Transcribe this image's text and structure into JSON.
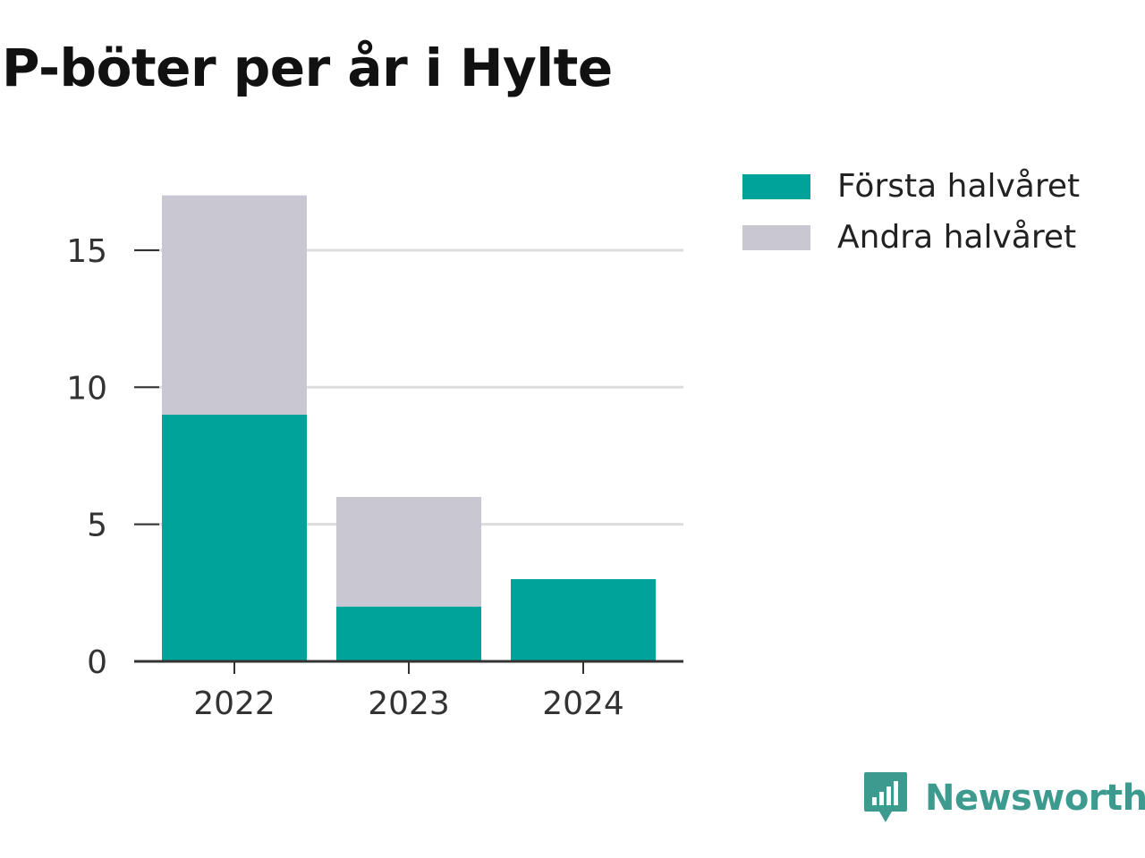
{
  "title": "P-böter per år i Hylte",
  "brand": {
    "name": "Newsworthy",
    "icon": "newsworthy-logo-icon"
  },
  "colors": {
    "first_half": "#00a39a",
    "second_half": "#c8c7d2",
    "grid": "#dddddd",
    "axis": "#333333",
    "brand": "#3c9a8e"
  },
  "chart_data": {
    "type": "bar",
    "stacked": true,
    "title": "P-böter per år i Hylte",
    "xlabel": "",
    "ylabel": "",
    "categories": [
      "2022",
      "2023",
      "2024"
    ],
    "series": [
      {
        "name": "Första halvåret",
        "values": [
          9,
          2,
          3
        ],
        "color": "#00a39a"
      },
      {
        "name": "Andra halvåret",
        "values": [
          8,
          4,
          0
        ],
        "color": "#c8c7d2"
      }
    ],
    "ylim": [
      0,
      17
    ],
    "yticks": [
      0,
      5,
      10,
      15
    ],
    "grid": true,
    "legend_position": "top-right"
  }
}
